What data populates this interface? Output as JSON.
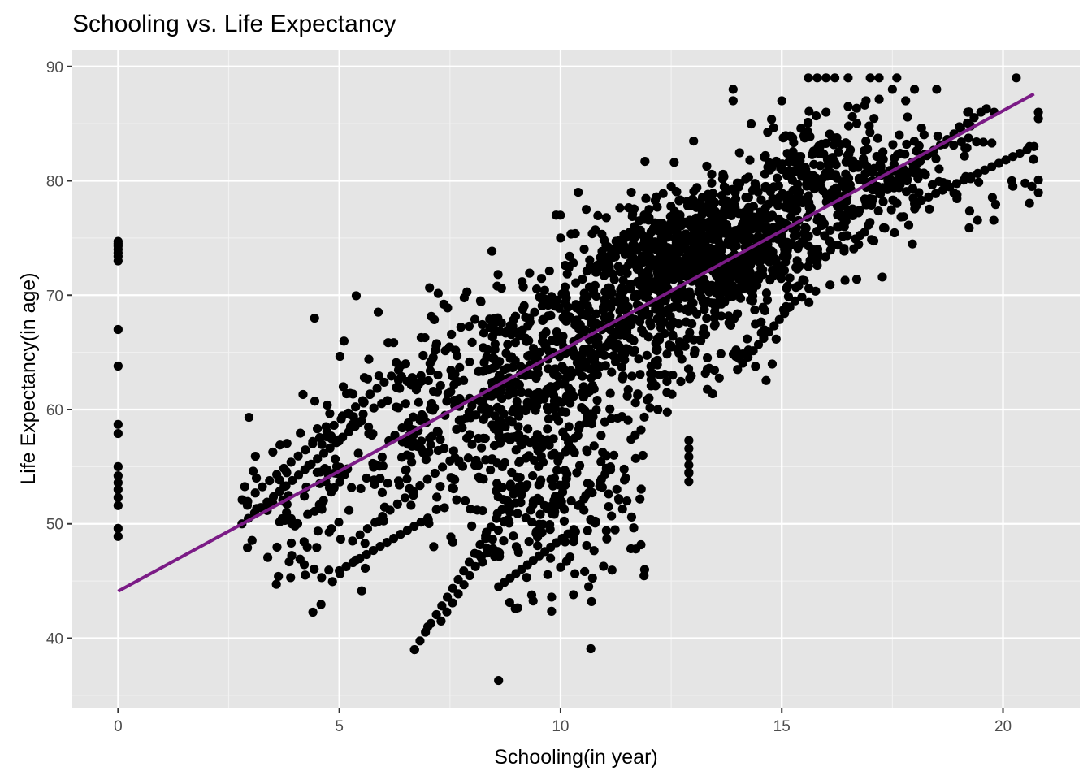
{
  "chart_data": {
    "type": "scatter",
    "title": "Schooling vs. Life Expectancy",
    "xlabel": "Schooling(in year)",
    "ylabel": "Life Expectancy(in age)",
    "xlim": [
      -1.035,
      21.735
    ],
    "ylim": [
      33.925,
      91.475
    ],
    "xticks": [
      0,
      5,
      10,
      15,
      20
    ],
    "yticks": [
      40,
      50,
      60,
      70,
      80,
      90
    ],
    "grid": true,
    "background": "#e5e5e5",
    "point_color": "#000000",
    "fit_line": {
      "type": "linear",
      "color": "#7b1b86",
      "x": [
        0,
        20.7
      ],
      "y": [
        44.1,
        87.6
      ]
    },
    "clusters": [
      {
        "x": 0,
        "x_spread": 0,
        "y_list": [
          48.9,
          49.6,
          51.6,
          52.3,
          53.0,
          53.6,
          54.2,
          55.0,
          57.9,
          58.7,
          63.8,
          67.0,
          73.0,
          73.4,
          73.7,
          74.0,
          74.3,
          74.5,
          74.7
        ]
      },
      {
        "cx": 4.3,
        "cy": 52.0,
        "sx": 1.0,
        "sy": 4.0,
        "n": 90
      },
      {
        "cx": 5.8,
        "cy": 58.0,
        "sx": 0.9,
        "sy": 4.0,
        "n": 90
      },
      {
        "cx": 7.8,
        "cy": 58.5,
        "sx": 1.0,
        "sy": 4.5,
        "n": 170
      },
      {
        "cx": 9.5,
        "cy": 56.0,
        "sx": 1.0,
        "sy": 6.0,
        "n": 200
      },
      {
        "cx": 10.3,
        "cy": 53.0,
        "sx": 0.7,
        "sy": 6.0,
        "n": 90
      },
      {
        "cx": 9.7,
        "cy": 65.5,
        "sx": 1.2,
        "sy": 3.5,
        "n": 240
      },
      {
        "cx": 11.2,
        "cy": 68.0,
        "sx": 1.2,
        "sy": 3.0,
        "n": 200
      },
      {
        "cx": 12.8,
        "cy": 73.5,
        "sx": 1.0,
        "sy": 2.2,
        "n": 500
      },
      {
        "cx": 14.5,
        "cy": 75.5,
        "sx": 1.2,
        "sy": 3.0,
        "n": 350
      },
      {
        "cx": 16.0,
        "cy": 80.5,
        "sx": 1.0,
        "sy": 2.5,
        "n": 250
      },
      {
        "cx": 18.5,
        "cy": 80.5,
        "sx": 1.2,
        "sy": 2.2,
        "n": 80
      },
      {
        "cx": 13.0,
        "cy": 66.0,
        "sx": 1.0,
        "sy": 3.0,
        "n": 80
      }
    ],
    "chains": [
      {
        "x0": 6.7,
        "y0": 39.0,
        "x1": 8.8,
        "y1": 52.0,
        "n": 18
      },
      {
        "x0": 7.3,
        "y0": 41.5,
        "x1": 9.5,
        "y1": 55.0,
        "n": 18
      },
      {
        "x0": 2.8,
        "y0": 50.0,
        "x1": 5.5,
        "y1": 59.0,
        "n": 20
      },
      {
        "x0": 3.1,
        "y0": 52.7,
        "x1": 6.5,
        "y1": 64.0,
        "n": 22
      },
      {
        "x0": 5.0,
        "y0": 45.9,
        "x1": 7.0,
        "y1": 50.5,
        "n": 14
      },
      {
        "x0": 8.6,
        "y0": 44.5,
        "x1": 10.3,
        "y1": 49.5,
        "n": 14
      },
      {
        "x0": 8.6,
        "y0": 58.0,
        "x1": 11.5,
        "y1": 67.0,
        "n": 20
      },
      {
        "x0": 12.0,
        "y0": 61.0,
        "x1": 12.7,
        "y1": 77.0,
        "n": 16
      },
      {
        "x0": 12.9,
        "y0": 53.7,
        "x1": 12.9,
        "y1": 57.3,
        "n": 6
      },
      {
        "x0": 13.5,
        "y0": 69.0,
        "x1": 16.0,
        "y1": 80.5,
        "n": 20
      },
      {
        "x0": 16.3,
        "y0": 76.0,
        "x1": 19.5,
        "y1": 86.0,
        "n": 22
      },
      {
        "x0": 18.0,
        "y0": 78.0,
        "x1": 20.7,
        "y1": 83.0,
        "n": 18
      },
      {
        "x0": 5.3,
        "y0": 48.5,
        "x1": 7.5,
        "y1": 55.5,
        "n": 14
      },
      {
        "x0": 14.0,
        "y0": 63.5,
        "x1": 15.3,
        "y1": 69.5,
        "n": 12
      },
      {
        "x0": 10.8,
        "y0": 72.0,
        "x1": 12.0,
        "y1": 77.5,
        "n": 12
      }
    ],
    "points": [
      [
        8.6,
        36.3
      ],
      [
        6.7,
        39.0
      ],
      [
        7.0,
        41.0
      ],
      [
        10.7,
        43.2
      ],
      [
        11.9,
        46.0
      ],
      [
        11.7,
        47.8
      ],
      [
        15.6,
        89.0
      ],
      [
        15.8,
        89.0
      ],
      [
        16.0,
        89.0
      ],
      [
        16.2,
        89.0
      ],
      [
        16.5,
        89.0
      ],
      [
        17.0,
        89.0
      ],
      [
        17.2,
        89.0
      ],
      [
        17.6,
        89.0
      ],
      [
        20.3,
        89.0
      ],
      [
        13.9,
        88.0
      ],
      [
        13.9,
        87.0
      ],
      [
        15.0,
        87.0
      ],
      [
        17.5,
        88.0
      ],
      [
        18.0,
        88.0
      ],
      [
        18.5,
        88.0
      ],
      [
        19.2,
        86.0
      ],
      [
        19.8,
        86.0
      ],
      [
        20.8,
        86.0
      ],
      [
        16.0,
        86.0
      ],
      [
        16.5,
        86.5
      ],
      [
        17.8,
        87.0
      ],
      [
        20.5,
        79.8
      ],
      [
        20.2,
        80.0
      ],
      [
        20.6,
        83.0
      ],
      [
        3.9,
        45.3
      ],
      [
        4.6,
        45.3
      ],
      [
        12.9,
        54.5
      ],
      [
        11.5,
        52.0
      ],
      [
        12.2,
        60.0
      ],
      [
        9.0,
        48.0
      ],
      [
        4.7,
        58.5
      ],
      [
        4.4,
        57.2
      ],
      [
        9.9,
        77.0
      ],
      [
        10.4,
        79.0
      ],
      [
        11.6,
        79.0
      ],
      [
        12.5,
        79.5
      ],
      [
        10.0,
        75.0
      ]
    ]
  }
}
